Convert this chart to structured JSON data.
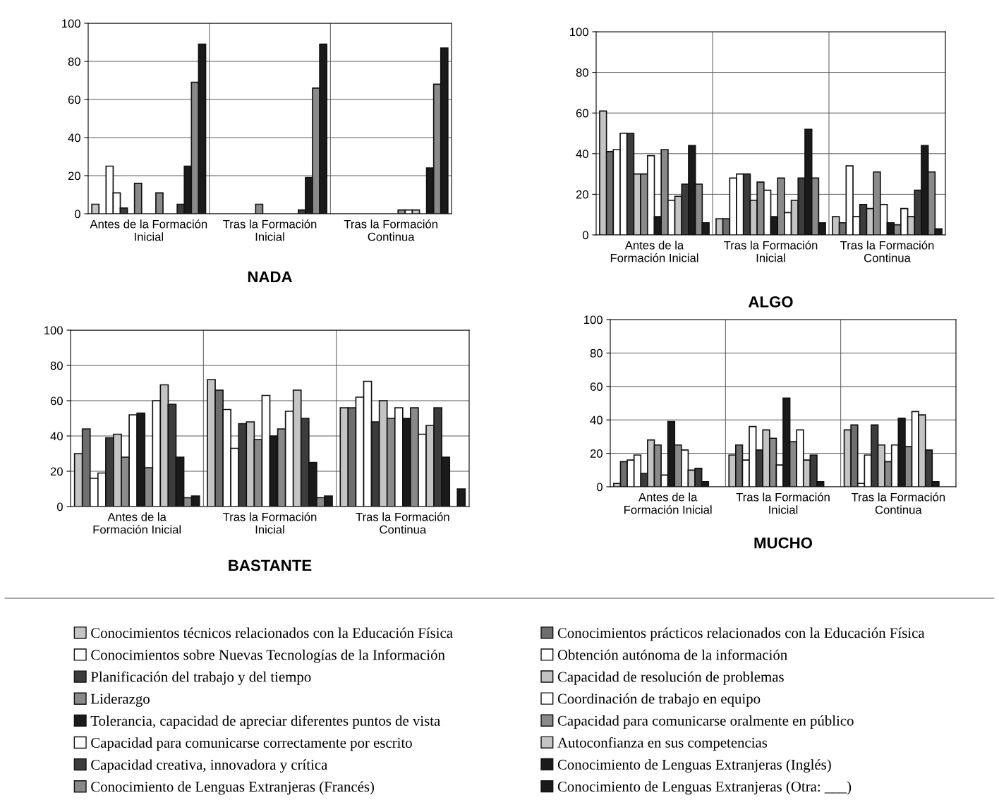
{
  "chart_data": [
    {
      "type": "bar",
      "title": "NADA",
      "categories": [
        "Antes de la Formación\nInicial",
        "Tras la Formación\nInicial",
        "Tras la Formación\nContinua"
      ],
      "ylim": [
        0,
        100
      ],
      "yticks": [
        0,
        20,
        40,
        60,
        80,
        100
      ],
      "grid": "y",
      "legend": "bottom",
      "series": [
        {
          "name": "Conocimientos técnicos relacionados con la Educación Física",
          "color": "#c4c4c4",
          "values": [
            5,
            0,
            0
          ]
        },
        {
          "name": "Conocimientos prácticos relacionados con la Educación Física",
          "color": "#6e6e6e",
          "values": [
            0,
            0,
            0
          ]
        },
        {
          "name": "Conocimientos sobre Nuevas Tecnologías de la Información",
          "color": "#ffffff",
          "values": [
            25,
            0,
            0
          ]
        },
        {
          "name": "Obtención autónoma de la información",
          "color": "#ffffff",
          "values": [
            11,
            0,
            0
          ]
        },
        {
          "name": "Planificación del trabajo y del tiempo",
          "color": "#3c3c3c",
          "values": [
            3,
            0,
            0
          ]
        },
        {
          "name": "Capacidad de resolución de problemas",
          "color": "#c4c4c4",
          "values": [
            0,
            0,
            0
          ]
        },
        {
          "name": "Liderazgo",
          "color": "#8a8a8a",
          "values": [
            16,
            5,
            0
          ]
        },
        {
          "name": "Coordinación de trabajo en equipo",
          "color": "#ffffff",
          "values": [
            0,
            0,
            0
          ]
        },
        {
          "name": "Tolerancia, capacidad de apreciar diferentes puntos de vista",
          "color": "#1a1a1a",
          "values": [
            0,
            0,
            0
          ]
        },
        {
          "name": "Capacidad para comunicarse oralmente en público",
          "color": "#8a8a8a",
          "values": [
            11,
            0,
            2
          ]
        },
        {
          "name": "Capacidad para comunicarse correctamente por escrito",
          "color": "#ffffff",
          "values": [
            0,
            0,
            2
          ]
        },
        {
          "name": "Autoconfianza en sus competencias",
          "color": "#c4c4c4",
          "values": [
            0,
            0,
            2
          ]
        },
        {
          "name": "Capacidad creativa, innovadora y crítica",
          "color": "#3c3c3c",
          "values": [
            5,
            2,
            0
          ]
        },
        {
          "name": "Conocimiento de Lenguas Extranjeras (Inglés)",
          "color": "#1a1a1a",
          "values": [
            25,
            19,
            24
          ]
        },
        {
          "name": "Conocimiento de Lenguas Extranjeras (Francés)",
          "color": "#8a8a8a",
          "values": [
            69,
            66,
            68
          ]
        },
        {
          "name": "Conocimiento de Lenguas Extranjeras (Otra: ___)",
          "color": "#1a1a1a",
          "values": [
            89,
            89,
            87
          ]
        }
      ]
    },
    {
      "type": "bar",
      "title": "ALGO",
      "categories": [
        "Antes de la\nFormación Inicial",
        "Tras la Formación\nInicial",
        "Tras la Formación\nContinua"
      ],
      "ylim": [
        0,
        100
      ],
      "yticks": [
        0,
        20,
        40,
        60,
        80,
        100
      ],
      "grid": "y",
      "series": [
        {
          "color": "#c4c4c4",
          "values": [
            61,
            8,
            9
          ]
        },
        {
          "color": "#6e6e6e",
          "values": [
            41,
            8,
            6
          ]
        },
        {
          "color": "#ffffff",
          "values": [
            42,
            28,
            34
          ]
        },
        {
          "color": "#ffffff",
          "values": [
            50,
            30,
            9
          ]
        },
        {
          "color": "#3c3c3c",
          "values": [
            50,
            30,
            15
          ]
        },
        {
          "color": "#c4c4c4",
          "values": [
            30,
            17,
            13
          ]
        },
        {
          "color": "#8a8a8a",
          "values": [
            30,
            26,
            31
          ]
        },
        {
          "color": "#ffffff",
          "values": [
            39,
            22,
            15
          ]
        },
        {
          "color": "#1a1a1a",
          "values": [
            9,
            9,
            6
          ]
        },
        {
          "color": "#8a8a8a",
          "values": [
            42,
            28,
            5
          ]
        },
        {
          "color": "#ffffff",
          "values": [
            17,
            11,
            13
          ]
        },
        {
          "color": "#c4c4c4",
          "values": [
            19,
            17,
            9
          ]
        },
        {
          "color": "#3c3c3c",
          "values": [
            25,
            28,
            22
          ]
        },
        {
          "color": "#1a1a1a",
          "values": [
            44,
            52,
            44
          ]
        },
        {
          "color": "#8a8a8a",
          "values": [
            25,
            28,
            31
          ]
        },
        {
          "color": "#1a1a1a",
          "values": [
            6,
            6,
            3
          ]
        }
      ]
    },
    {
      "type": "bar",
      "title": "BASTANTE",
      "categories": [
        "Antes de la\nFormación Inicial",
        "Tras la Formación\nInicial",
        "Tras la Formación\nContinua"
      ],
      "ylim": [
        0,
        100
      ],
      "yticks": [
        0,
        20,
        40,
        60,
        80,
        100
      ],
      "grid": "y",
      "series": [
        {
          "color": "#c4c4c4",
          "values": [
            30,
            72,
            56
          ]
        },
        {
          "color": "#6e6e6e",
          "values": [
            44,
            66,
            56
          ]
        },
        {
          "color": "#ffffff",
          "values": [
            16,
            55,
            62
          ]
        },
        {
          "color": "#ffffff",
          "values": [
            19,
            33,
            71
          ]
        },
        {
          "color": "#3c3c3c",
          "values": [
            39,
            47,
            48
          ]
        },
        {
          "color": "#c4c4c4",
          "values": [
            41,
            48,
            60
          ]
        },
        {
          "color": "#8a8a8a",
          "values": [
            28,
            38,
            50
          ]
        },
        {
          "color": "#ffffff",
          "values": [
            52,
            63,
            56
          ]
        },
        {
          "color": "#1a1a1a",
          "values": [
            53,
            40,
            50
          ]
        },
        {
          "color": "#8a8a8a",
          "values": [
            22,
            44,
            56
          ]
        },
        {
          "color": "#ffffff",
          "values": [
            60,
            54,
            41
          ]
        },
        {
          "color": "#c4c4c4",
          "values": [
            69,
            66,
            46
          ]
        },
        {
          "color": "#3c3c3c",
          "values": [
            58,
            50,
            56
          ]
        },
        {
          "color": "#1a1a1a",
          "values": [
            28,
            25,
            28
          ]
        },
        {
          "color": "#8a8a8a",
          "values": [
            5,
            5,
            0
          ]
        },
        {
          "color": "#1a1a1a",
          "values": [
            6,
            6,
            10
          ]
        }
      ]
    },
    {
      "type": "bar",
      "title": "MUCHO",
      "categories": [
        "Antes de la\nFormación Inicial",
        "Tras la Formación\nInicial",
        "Tras la Formación\nContinua"
      ],
      "ylim": [
        0,
        100
      ],
      "yticks": [
        0,
        20,
        40,
        60,
        80,
        100
      ],
      "grid": "y",
      "series": [
        {
          "color": "#c4c4c4",
          "values": [
            2,
            19,
            34
          ]
        },
        {
          "color": "#6e6e6e",
          "values": [
            15,
            25,
            37
          ]
        },
        {
          "color": "#ffffff",
          "values": [
            16,
            16,
            2
          ]
        },
        {
          "color": "#ffffff",
          "values": [
            19,
            36,
            19
          ]
        },
        {
          "color": "#3c3c3c",
          "values": [
            8,
            22,
            37
          ]
        },
        {
          "color": "#c4c4c4",
          "values": [
            28,
            34,
            25
          ]
        },
        {
          "color": "#8a8a8a",
          "values": [
            25,
            29,
            15
          ]
        },
        {
          "color": "#ffffff",
          "values": [
            7,
            13,
            25
          ]
        },
        {
          "color": "#1a1a1a",
          "values": [
            39,
            53,
            41
          ]
        },
        {
          "color": "#8a8a8a",
          "values": [
            25,
            27,
            24
          ]
        },
        {
          "color": "#ffffff",
          "values": [
            22,
            34,
            45
          ]
        },
        {
          "color": "#c4c4c4",
          "values": [
            10,
            16,
            43
          ]
        },
        {
          "color": "#3c3c3c",
          "values": [
            11,
            19,
            22
          ]
        },
        {
          "color": "#1a1a1a",
          "values": [
            3,
            3,
            3
          ]
        },
        {
          "color": "#8a8a8a",
          "values": [
            0,
            0,
            0
          ]
        },
        {
          "color": "#1a1a1a",
          "values": [
            0,
            0,
            0
          ]
        }
      ]
    }
  ]
}
